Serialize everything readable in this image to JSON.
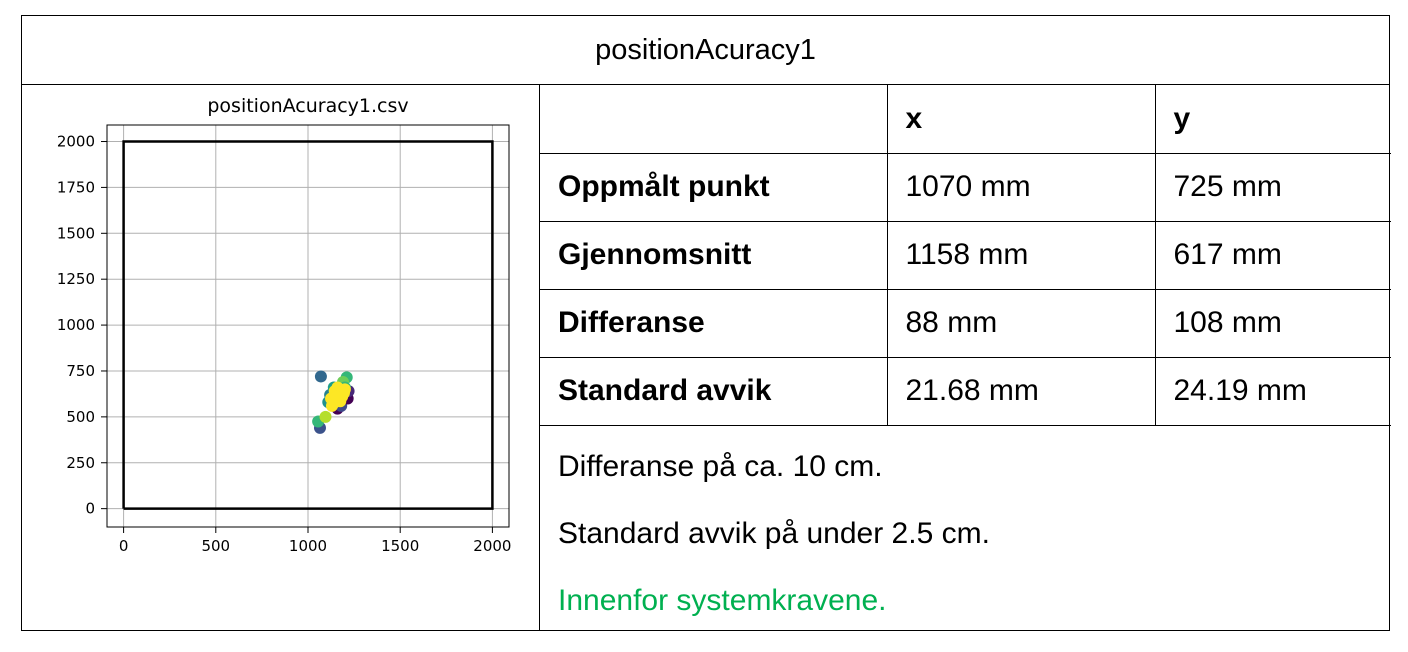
{
  "document": {
    "title": "positionAcuracy1"
  },
  "table": {
    "headers": [
      "",
      "x",
      "y"
    ],
    "rows": [
      {
        "label": "Oppmålt punkt",
        "x": "1070 mm",
        "y": "725 mm"
      },
      {
        "label": "Gjennomsnitt",
        "x": "1158 mm",
        "y": "617 mm"
      },
      {
        "label": "Differanse",
        "x": "88 mm",
        "y": "108 mm"
      },
      {
        "label": "Standard avvik",
        "x": "21.68 mm",
        "y": "24.19 mm"
      }
    ]
  },
  "notes": {
    "line1": "Differanse på ca. 10 cm.",
    "line2": "Standard avvik på under 2.5 cm.",
    "line3": "Innenfor systemkravene.",
    "line3_color": "#00b050"
  },
  "chart_data": {
    "type": "scatter",
    "title": "positionAcuracy1.csv",
    "xlabel": "",
    "ylabel": "",
    "xlim": [
      -90,
      2090
    ],
    "ylim": [
      -100,
      2090
    ],
    "xticks": [
      0,
      500,
      1000,
      1500,
      2000
    ],
    "yticks": [
      0,
      250,
      500,
      750,
      1000,
      1250,
      1500,
      1750,
      2000
    ],
    "grid": true,
    "boundary": {
      "x": [
        0,
        2000,
        2000,
        0,
        0
      ],
      "y": [
        0,
        0,
        2000,
        2000,
        0
      ],
      "color": "#000000"
    },
    "points": [
      {
        "x": 1070,
        "y": 720,
        "color": "#31688e"
      },
      {
        "x": 1210,
        "y": 715,
        "color": "#35b779"
      },
      {
        "x": 1065,
        "y": 440,
        "color": "#3b528b"
      },
      {
        "x": 1055,
        "y": 475,
        "color": "#35b779"
      },
      {
        "x": 1095,
        "y": 500,
        "color": "#b5de2b"
      },
      {
        "x": 1160,
        "y": 545,
        "color": "#440154"
      },
      {
        "x": 1180,
        "y": 560,
        "color": "#3e4989"
      },
      {
        "x": 1215,
        "y": 600,
        "color": "#440154"
      },
      {
        "x": 1220,
        "y": 640,
        "color": "#482878"
      },
      {
        "x": 1110,
        "y": 580,
        "color": "#21918c"
      },
      {
        "x": 1120,
        "y": 620,
        "color": "#26828e"
      },
      {
        "x": 1140,
        "y": 660,
        "color": "#1f9e89"
      },
      {
        "x": 1190,
        "y": 690,
        "color": "#6ece58"
      },
      {
        "x": 1200,
        "y": 660,
        "color": "#35b779"
      },
      {
        "x": 1130,
        "y": 560,
        "color": "#fde725"
      },
      {
        "x": 1150,
        "y": 590,
        "color": "#fde725"
      },
      {
        "x": 1165,
        "y": 620,
        "color": "#fde725"
      },
      {
        "x": 1180,
        "y": 645,
        "color": "#fde725"
      },
      {
        "x": 1195,
        "y": 630,
        "color": "#fde725"
      },
      {
        "x": 1145,
        "y": 640,
        "color": "#fde725"
      },
      {
        "x": 1170,
        "y": 600,
        "color": "#fde725"
      },
      {
        "x": 1185,
        "y": 610,
        "color": "#fde725"
      },
      {
        "x": 1125,
        "y": 600,
        "color": "#fde725"
      },
      {
        "x": 1160,
        "y": 660,
        "color": "#fde725"
      },
      {
        "x": 1200,
        "y": 650,
        "color": "#fde725"
      },
      {
        "x": 1140,
        "y": 575,
        "color": "#fde725"
      },
      {
        "x": 1175,
        "y": 585,
        "color": "#fde725"
      },
      {
        "x": 1155,
        "y": 610,
        "color": "#fde725"
      }
    ]
  }
}
